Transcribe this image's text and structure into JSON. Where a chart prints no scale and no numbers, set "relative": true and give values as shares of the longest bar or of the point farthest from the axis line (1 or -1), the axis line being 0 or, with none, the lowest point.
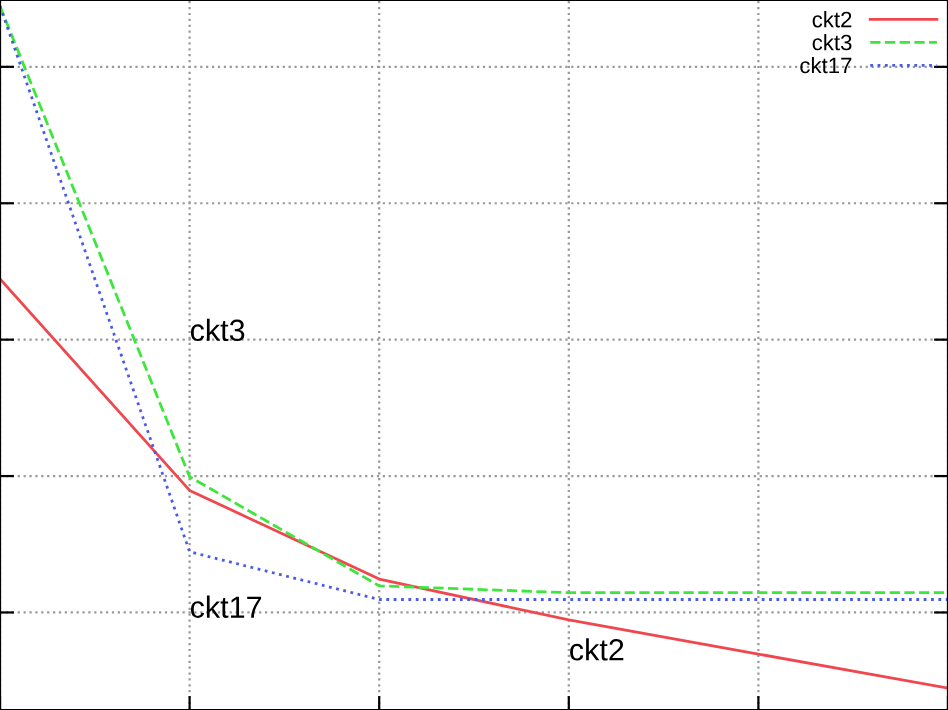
{
  "chart_data": {
    "type": "line",
    "relative": true,
    "categories": [
      null,
      null,
      null,
      null,
      null,
      null
    ],
    "series": [
      {
        "name": "ckt2",
        "color": "#f0474f",
        "line_style": "solid",
        "values": [
          0.6,
          0.29,
          0.16,
          0.1,
          0.05,
          0
        ]
      },
      {
        "name": "ckt3",
        "color": "#3de63d",
        "line_style": "dashed",
        "values": [
          1,
          0.31,
          0.15,
          0.14,
          0.14,
          0.14
        ]
      },
      {
        "name": "ckt17",
        "color": "#4a5ae8",
        "line_style": "dotted",
        "values": [
          1,
          0.2,
          0.13,
          0.13,
          0.13,
          0.13
        ]
      }
    ],
    "annotations": [
      "ckt3",
      "ckt17",
      "ckt2"
    ],
    "grid": true,
    "legend": "top right"
  }
}
